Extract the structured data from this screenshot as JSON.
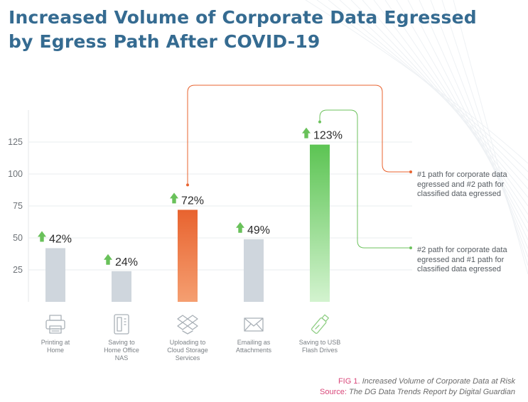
{
  "title_line1": "Increased Volume of Corporate Data Egressed",
  "title_line2": "by Egress Path After COVID-19",
  "chart_data": {
    "type": "bar",
    "title": "Increased Volume of Corporate Data Egressed by Egress Path After COVID-19",
    "categories": [
      [
        "Printing at",
        "Home"
      ],
      [
        "Saving to",
        "Home Office",
        "NAS"
      ],
      [
        "Uploading to",
        "Cloud Storage",
        "Services"
      ],
      [
        "Emailing as",
        "Attachments"
      ],
      [
        "Saving to USB",
        "Flash Drives"
      ]
    ],
    "values": [
      42,
      24,
      72,
      49,
      123
    ],
    "value_labels": [
      "42%",
      "24%",
      "72%",
      "49%",
      "123%"
    ],
    "yticks": [
      25,
      50,
      75,
      100,
      125
    ],
    "ylim": [
      0,
      150
    ],
    "xlabel": "",
    "ylabel": "",
    "grid": true,
    "icons": [
      "printer-icon",
      "nas-drive-icon",
      "cloud-box-icon",
      "envelope-icon",
      "usb-drive-icon"
    ],
    "bar_colors": {
      "default": "#cfd6dd",
      "highlight_orange": [
        "#f59f71",
        "#e8632f"
      ],
      "highlight_green": [
        "#d3f3cf",
        "#5cc453"
      ]
    },
    "arrow_color": "#69c15a"
  },
  "annotations": [
    {
      "text": "#1 path for corporate data egressed and #2 path for classified data egressed",
      "color": "#e8632f"
    },
    {
      "text": "#2 path for corporate data egressed and #1 path for classified data egressed",
      "color": "#6cc25c"
    }
  ],
  "caption": {
    "fig_label": "FIG 1.",
    "fig_text": "Increased Volume of Corporate Data at Risk",
    "source_label": "Source:",
    "source_text": "The DG Data Trends Report by Digital Guardian"
  }
}
